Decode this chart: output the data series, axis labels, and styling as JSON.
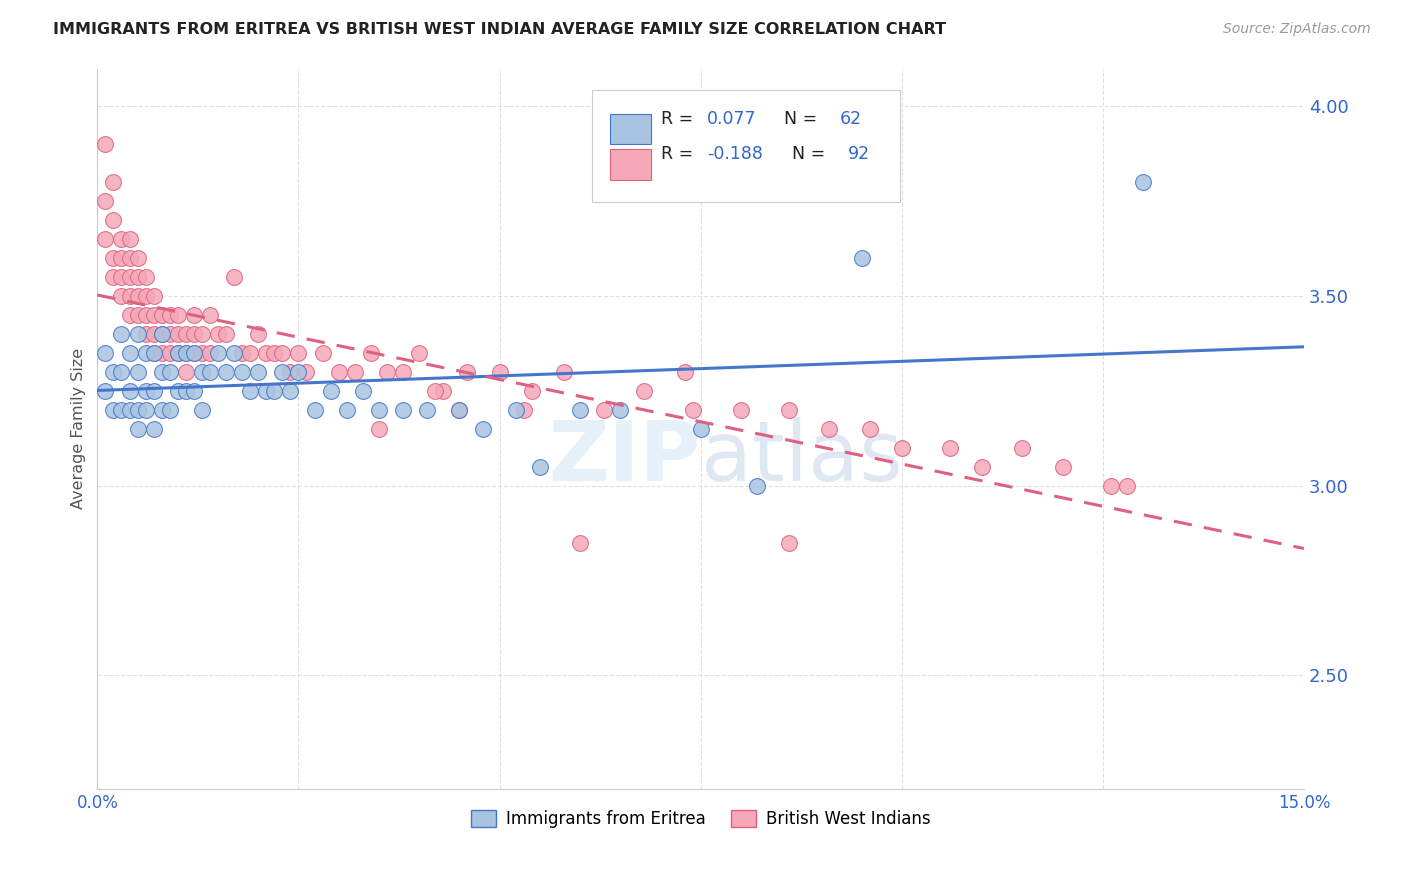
{
  "title": "IMMIGRANTS FROM ERITREA VS BRITISH WEST INDIAN AVERAGE FAMILY SIZE CORRELATION CHART",
  "source": "Source: ZipAtlas.com",
  "ylabel": "Average Family Size",
  "xlim": [
    0.0,
    0.15
  ],
  "ylim": [
    2.2,
    4.1
  ],
  "yticks": [
    2.5,
    3.0,
    3.5,
    4.0
  ],
  "xtick_majors": [
    0.0,
    0.025,
    0.05,
    0.075,
    0.1,
    0.125,
    0.15
  ],
  "xtick_labels": [
    "0.0%",
    "",
    "",
    "",
    "",
    "",
    "15.0%"
  ],
  "ytick_color": "#3366cc",
  "xtick_color": "#3366cc",
  "color_eritrea": "#a8c4e0",
  "color_bwi": "#f4a8b8",
  "line_color_eritrea": "#4477cc",
  "line_color_bwi": "#e06080",
  "background_color": "#ffffff",
  "eritrea_x": [
    0.001,
    0.001,
    0.002,
    0.002,
    0.003,
    0.003,
    0.003,
    0.004,
    0.004,
    0.004,
    0.005,
    0.005,
    0.005,
    0.005,
    0.006,
    0.006,
    0.006,
    0.007,
    0.007,
    0.007,
    0.008,
    0.008,
    0.008,
    0.009,
    0.009,
    0.01,
    0.01,
    0.011,
    0.011,
    0.012,
    0.012,
    0.013,
    0.013,
    0.014,
    0.015,
    0.016,
    0.017,
    0.018,
    0.019,
    0.02,
    0.021,
    0.022,
    0.023,
    0.024,
    0.025,
    0.027,
    0.029,
    0.031,
    0.033,
    0.035,
    0.038,
    0.041,
    0.045,
    0.048,
    0.052,
    0.055,
    0.06,
    0.065,
    0.075,
    0.082,
    0.095,
    0.13
  ],
  "eritrea_y": [
    3.35,
    3.25,
    3.3,
    3.2,
    3.4,
    3.3,
    3.2,
    3.35,
    3.25,
    3.2,
    3.4,
    3.3,
    3.2,
    3.15,
    3.35,
    3.25,
    3.2,
    3.35,
    3.25,
    3.15,
    3.4,
    3.3,
    3.2,
    3.3,
    3.2,
    3.35,
    3.25,
    3.35,
    3.25,
    3.35,
    3.25,
    3.3,
    3.2,
    3.3,
    3.35,
    3.3,
    3.35,
    3.3,
    3.25,
    3.3,
    3.25,
    3.25,
    3.3,
    3.25,
    3.3,
    3.2,
    3.25,
    3.2,
    3.25,
    3.2,
    3.2,
    3.2,
    3.2,
    3.15,
    3.2,
    3.05,
    3.2,
    3.2,
    3.15,
    3.0,
    3.6,
    3.8
  ],
  "bwi_x": [
    0.001,
    0.001,
    0.001,
    0.002,
    0.002,
    0.002,
    0.002,
    0.003,
    0.003,
    0.003,
    0.003,
    0.004,
    0.004,
    0.004,
    0.004,
    0.004,
    0.005,
    0.005,
    0.005,
    0.005,
    0.006,
    0.006,
    0.006,
    0.006,
    0.007,
    0.007,
    0.007,
    0.007,
    0.008,
    0.008,
    0.008,
    0.009,
    0.009,
    0.009,
    0.01,
    0.01,
    0.01,
    0.011,
    0.011,
    0.011,
    0.012,
    0.012,
    0.012,
    0.013,
    0.013,
    0.014,
    0.014,
    0.015,
    0.016,
    0.017,
    0.018,
    0.019,
    0.02,
    0.021,
    0.022,
    0.023,
    0.024,
    0.025,
    0.026,
    0.028,
    0.03,
    0.032,
    0.034,
    0.036,
    0.038,
    0.04,
    0.043,
    0.046,
    0.05,
    0.054,
    0.058,
    0.063,
    0.068,
    0.074,
    0.08,
    0.086,
    0.091,
    0.096,
    0.1,
    0.106,
    0.11,
    0.115,
    0.12,
    0.126,
    0.128,
    0.086,
    0.073,
    0.053,
    0.042,
    0.06,
    0.045,
    0.035
  ],
  "bwi_y": [
    3.9,
    3.75,
    3.65,
    3.8,
    3.7,
    3.6,
    3.55,
    3.65,
    3.6,
    3.55,
    3.5,
    3.65,
    3.6,
    3.55,
    3.5,
    3.45,
    3.6,
    3.55,
    3.5,
    3.45,
    3.55,
    3.5,
    3.45,
    3.4,
    3.5,
    3.45,
    3.4,
    3.35,
    3.45,
    3.4,
    3.35,
    3.45,
    3.4,
    3.35,
    3.45,
    3.4,
    3.35,
    3.4,
    3.35,
    3.3,
    3.45,
    3.4,
    3.35,
    3.4,
    3.35,
    3.45,
    3.35,
    3.4,
    3.4,
    3.55,
    3.35,
    3.35,
    3.4,
    3.35,
    3.35,
    3.35,
    3.3,
    3.35,
    3.3,
    3.35,
    3.3,
    3.3,
    3.35,
    3.3,
    3.3,
    3.35,
    3.25,
    3.3,
    3.3,
    3.25,
    3.3,
    3.2,
    3.25,
    3.2,
    3.2,
    3.2,
    3.15,
    3.15,
    3.1,
    3.1,
    3.05,
    3.1,
    3.05,
    3.0,
    3.0,
    2.85,
    3.3,
    3.2,
    3.25,
    2.85,
    3.2,
    3.15
  ]
}
